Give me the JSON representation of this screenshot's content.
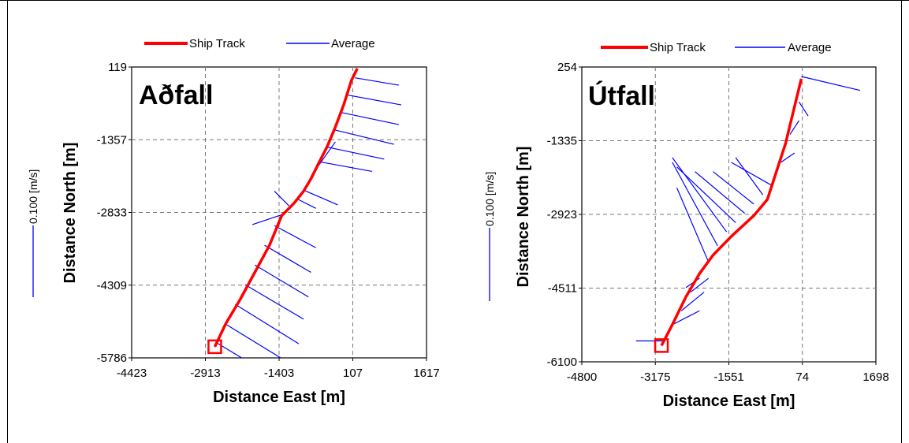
{
  "chart_data": [
    {
      "type": "line",
      "title": "Aðfall",
      "xlabel": "Distance East [m]",
      "ylabel": "Distance North [m]",
      "xlim": [
        -4423,
        1617
      ],
      "ylim": [
        -5786,
        119
      ],
      "xticks": [
        "-4423",
        "-2913",
        "-1403",
        "107",
        "1617"
      ],
      "yticks": [
        "119",
        "-1357",
        "-2833",
        "-4309",
        "-5786"
      ],
      "grid": true,
      "legend": {
        "position": "top",
        "entries": [
          "Ship Track",
          "Average"
        ]
      },
      "scale_label": "0.100 [m/s]",
      "colors": {
        "track": "#ff0000",
        "vectors": "#0000ff"
      },
      "series": [
        {
          "name": "Ship Track",
          "x": [
            -2720,
            -2500,
            -2200,
            -1900,
            -1600,
            -1350,
            -1100,
            -900,
            -750,
            -600,
            -420,
            -250,
            -80,
            80,
            200
          ],
          "y": [
            -5560,
            -5100,
            -4600,
            -4050,
            -3500,
            -2900,
            -2650,
            -2400,
            -2150,
            -1850,
            -1500,
            -1100,
            -650,
            -150,
            90
          ]
        },
        {
          "name": "Average",
          "x": [
            -2680,
            -2500,
            -2300,
            -2100,
            -1900,
            -1700,
            -1500,
            -1350,
            -1200,
            -1050,
            -900,
            -750,
            -600,
            -450,
            -300,
            -150,
            0,
            150
          ],
          "y": [
            -5480,
            -5100,
            -4700,
            -4300,
            -3900,
            -3500,
            -3100,
            -2880,
            -2700,
            -2550,
            -2380,
            -2100,
            -1800,
            -1500,
            -1150,
            -800,
            -450,
            -100
          ],
          "u": [
            1500,
            1400,
            1300,
            1200,
            1100,
            950,
            850,
            -600,
            -300,
            400,
            700,
            500,
            1100,
            1200,
            1250,
            1200,
            1100,
            900
          ],
          "v": [
            -900,
            -850,
            -800,
            -700,
            -650,
            -550,
            -450,
            -200,
            300,
            -200,
            -300,
            700,
            -200,
            -250,
            -300,
            -250,
            -200,
            -150
          ]
        }
      ]
    },
    {
      "type": "line",
      "title": "Útfall",
      "xlabel": "Distance East [m]",
      "ylabel": "Distance North [m]",
      "xlim": [
        -4800,
        1698
      ],
      "ylim": [
        -6100,
        254
      ],
      "xticks": [
        "-4800",
        "-3175",
        "-1551",
        "74",
        "1698"
      ],
      "yticks": [
        "254",
        "-1335",
        "-2923",
        "-4511",
        "-6100"
      ],
      "grid": true,
      "legend": {
        "position": "top",
        "entries": [
          "Ship Track",
          "Average"
        ]
      },
      "scale_label": "0.100 [m/s]",
      "colors": {
        "track": "#ff0000",
        "vectors": "#0000ff"
      },
      "series": [
        {
          "name": "Ship Track",
          "x": [
            -3040,
            -2800,
            -2500,
            -2200,
            -1900,
            -1500,
            -1000,
            -700,
            -500,
            -300,
            -100,
            50
          ],
          "y": [
            -5750,
            -5300,
            -4700,
            -4200,
            -3800,
            -3400,
            -2950,
            -2600,
            -2000,
            -1400,
            -600,
            0
          ]
        },
        {
          "name": "Average",
          "x": [
            -3000,
            -2800,
            -2600,
            -2400,
            -2200,
            -2000,
            -1800,
            -1600,
            -1400,
            -1200,
            -1000,
            -800,
            -600,
            -400,
            -200,
            0,
            50
          ],
          "y": [
            -5650,
            -5300,
            -5000,
            -4600,
            -4300,
            -3950,
            -3600,
            -3300,
            -3100,
            -2900,
            -2700,
            -2500,
            -2300,
            -1800,
            -1200,
            -500,
            50
          ],
          "u": [
            -600,
            600,
            500,
            400,
            -300,
            -700,
            -1000,
            -1200,
            -1300,
            -1100,
            -900,
            -600,
            -900,
            300,
            200,
            200,
            1300
          ],
          "v": [
            0,
            300,
            400,
            300,
            -200,
            1600,
            1800,
            1600,
            1200,
            900,
            700,
            800,
            500,
            200,
            300,
            -300,
            -300
          ]
        }
      ]
    }
  ]
}
